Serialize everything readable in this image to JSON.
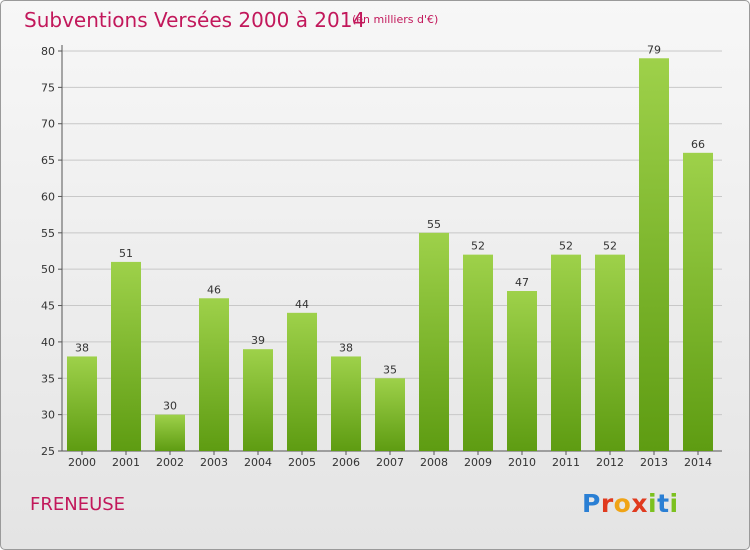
{
  "header": {
    "title": "Subventions Versées 2000 à 2014",
    "subtitle": "(en milliers d'€)"
  },
  "footer": {
    "commune": "FRENEUSE",
    "brand": "Proxiti",
    "brand_colors": [
      "#2a7fd4",
      "#e03a1e",
      "#f0a416",
      "#e03a1e",
      "#7cc11f",
      "#2a7fd4",
      "#7cc11f"
    ]
  },
  "chart_data": {
    "type": "bar",
    "title": "Subventions Versées 2000 à 2014",
    "subtitle": "(en milliers d'€)",
    "xlabel": "",
    "ylabel": "",
    "categories": [
      "2000",
      "2001",
      "2002",
      "2003",
      "2004",
      "2005",
      "2006",
      "2007",
      "2008",
      "2009",
      "2010",
      "2011",
      "2012",
      "2013",
      "2014"
    ],
    "values": [
      38,
      51,
      30,
      46,
      39,
      44,
      38,
      35,
      55,
      52,
      47,
      52,
      52,
      79,
      66
    ],
    "ylim": [
      25,
      80
    ],
    "yticks": [
      25,
      30,
      35,
      40,
      45,
      50,
      55,
      60,
      65,
      70,
      75,
      80
    ],
    "grid": true,
    "bar_color": "#8cc63f",
    "bar_color_dark": "#5e9c12",
    "grid_color": "#c8c8c8",
    "text_color": "#c2185b"
  }
}
